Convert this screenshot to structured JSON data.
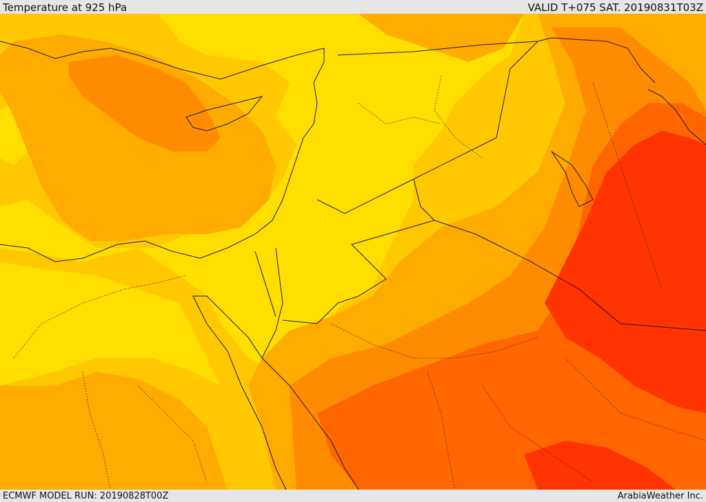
{
  "header": {
    "title": "Temperature at 925 hPa",
    "valid": "VALID T+075 SAT. 20190831T03Z"
  },
  "footer": {
    "model_run": "ECMWF MODEL RUN: 20190828T00Z",
    "credit": "ArabiaWeather Inc."
  },
  "palette": {
    "yellow_light": "#ffde00",
    "yellow_orange": "#ffc800",
    "orange": "#ffab00",
    "dark_orange": "#ff8c00",
    "red_orange": "#ff6600",
    "red": "#ff3300",
    "border": "#1a1a1a"
  }
}
